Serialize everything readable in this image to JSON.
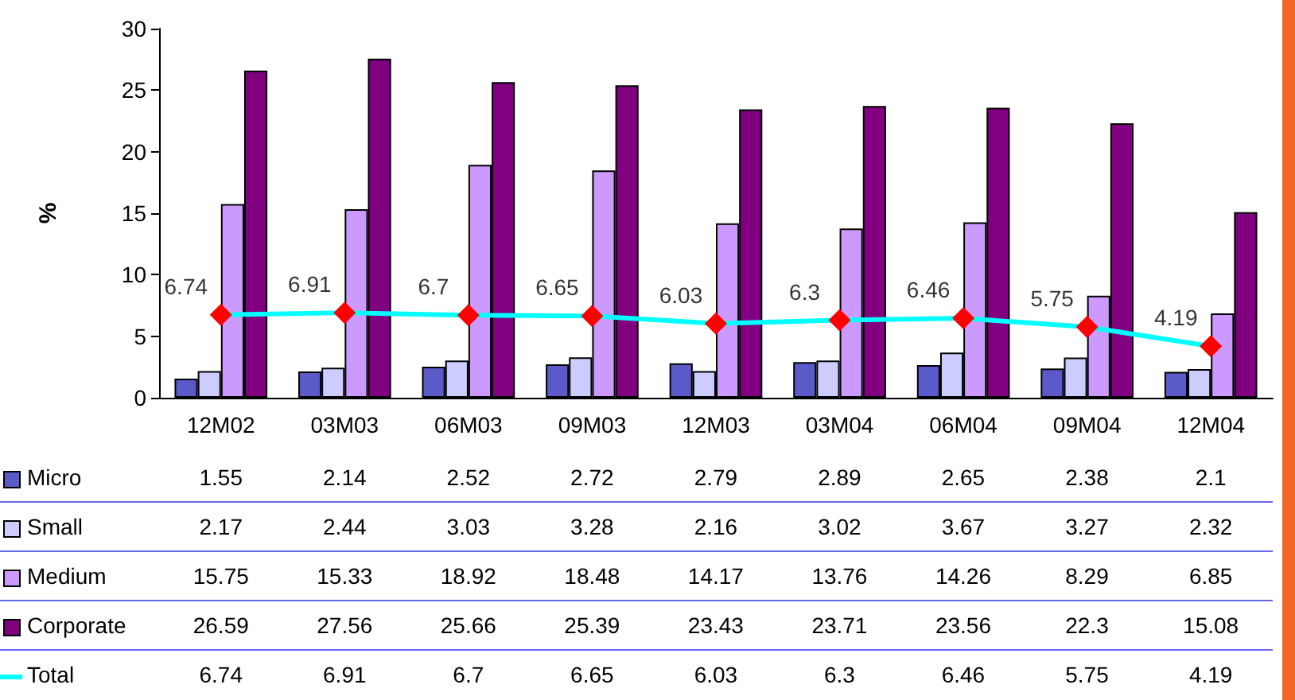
{
  "chart_data": {
    "type": "bar",
    "ylabel": "%",
    "categories": [
      "12M02",
      "03M03",
      "06M03",
      "09M03",
      "12M03",
      "03M04",
      "06M04",
      "09M04",
      "12M04"
    ],
    "series": [
      {
        "name": "Micro",
        "color": "#5a5ac8",
        "values": [
          1.55,
          2.14,
          2.52,
          2.72,
          2.79,
          2.89,
          2.65,
          2.38,
          2.1
        ]
      },
      {
        "name": "Small",
        "color": "#ccccff",
        "values": [
          2.17,
          2.44,
          3.03,
          3.28,
          2.16,
          3.02,
          3.67,
          3.27,
          2.32
        ]
      },
      {
        "name": "Medium",
        "color": "#cc99ff",
        "values": [
          15.75,
          15.33,
          18.92,
          18.48,
          14.17,
          13.76,
          14.26,
          8.29,
          6.85
        ]
      },
      {
        "name": "Corporate",
        "color": "#800080",
        "values": [
          26.59,
          27.56,
          25.66,
          25.39,
          23.43,
          23.71,
          23.56,
          22.3,
          15.08
        ]
      },
      {
        "name": "Total",
        "type": "line",
        "color": "#00ffff",
        "marker": "diamond",
        "colors": [
          "#ff0000",
          "#ff0000",
          "#ff0000",
          "#ff0000",
          "#ff0000",
          "#ff0000",
          "#ff0000",
          "#ff0000",
          "#ff0000"
        ],
        "values": [
          6.74,
          6.91,
          6.7,
          6.65,
          6.03,
          6.3,
          6.46,
          5.75,
          4.19
        ]
      }
    ],
    "ylim": [
      0,
      30
    ],
    "yticks": [
      0,
      5,
      10,
      15,
      20,
      25,
      30
    ],
    "annotations": [
      {
        "text": "6.74",
        "x": "12M02",
        "y": 6.74
      },
      {
        "text": "6.91",
        "x": "03M03",
        "y": 6.91
      },
      {
        "text": "6.7",
        "x": "06M03",
        "y": 6.7
      },
      {
        "text": "6.65",
        "x": "09M03",
        "y": 6.65
      },
      {
        "text": "6.03",
        "x": "12M03",
        "y": 6.03
      },
      {
        "text": "6.3",
        "x": "03M04",
        "y": 6.3
      },
      {
        "text": "6.46",
        "x": "06M04",
        "y": 6.46
      },
      {
        "text": "5.75",
        "x": "09M04",
        "y": 5.75
      },
      {
        "text": "4.19",
        "x": "12M04",
        "y": 4.19
      }
    ],
    "grid": false,
    "legend": "bottom",
    "data_labels": true
  }
}
